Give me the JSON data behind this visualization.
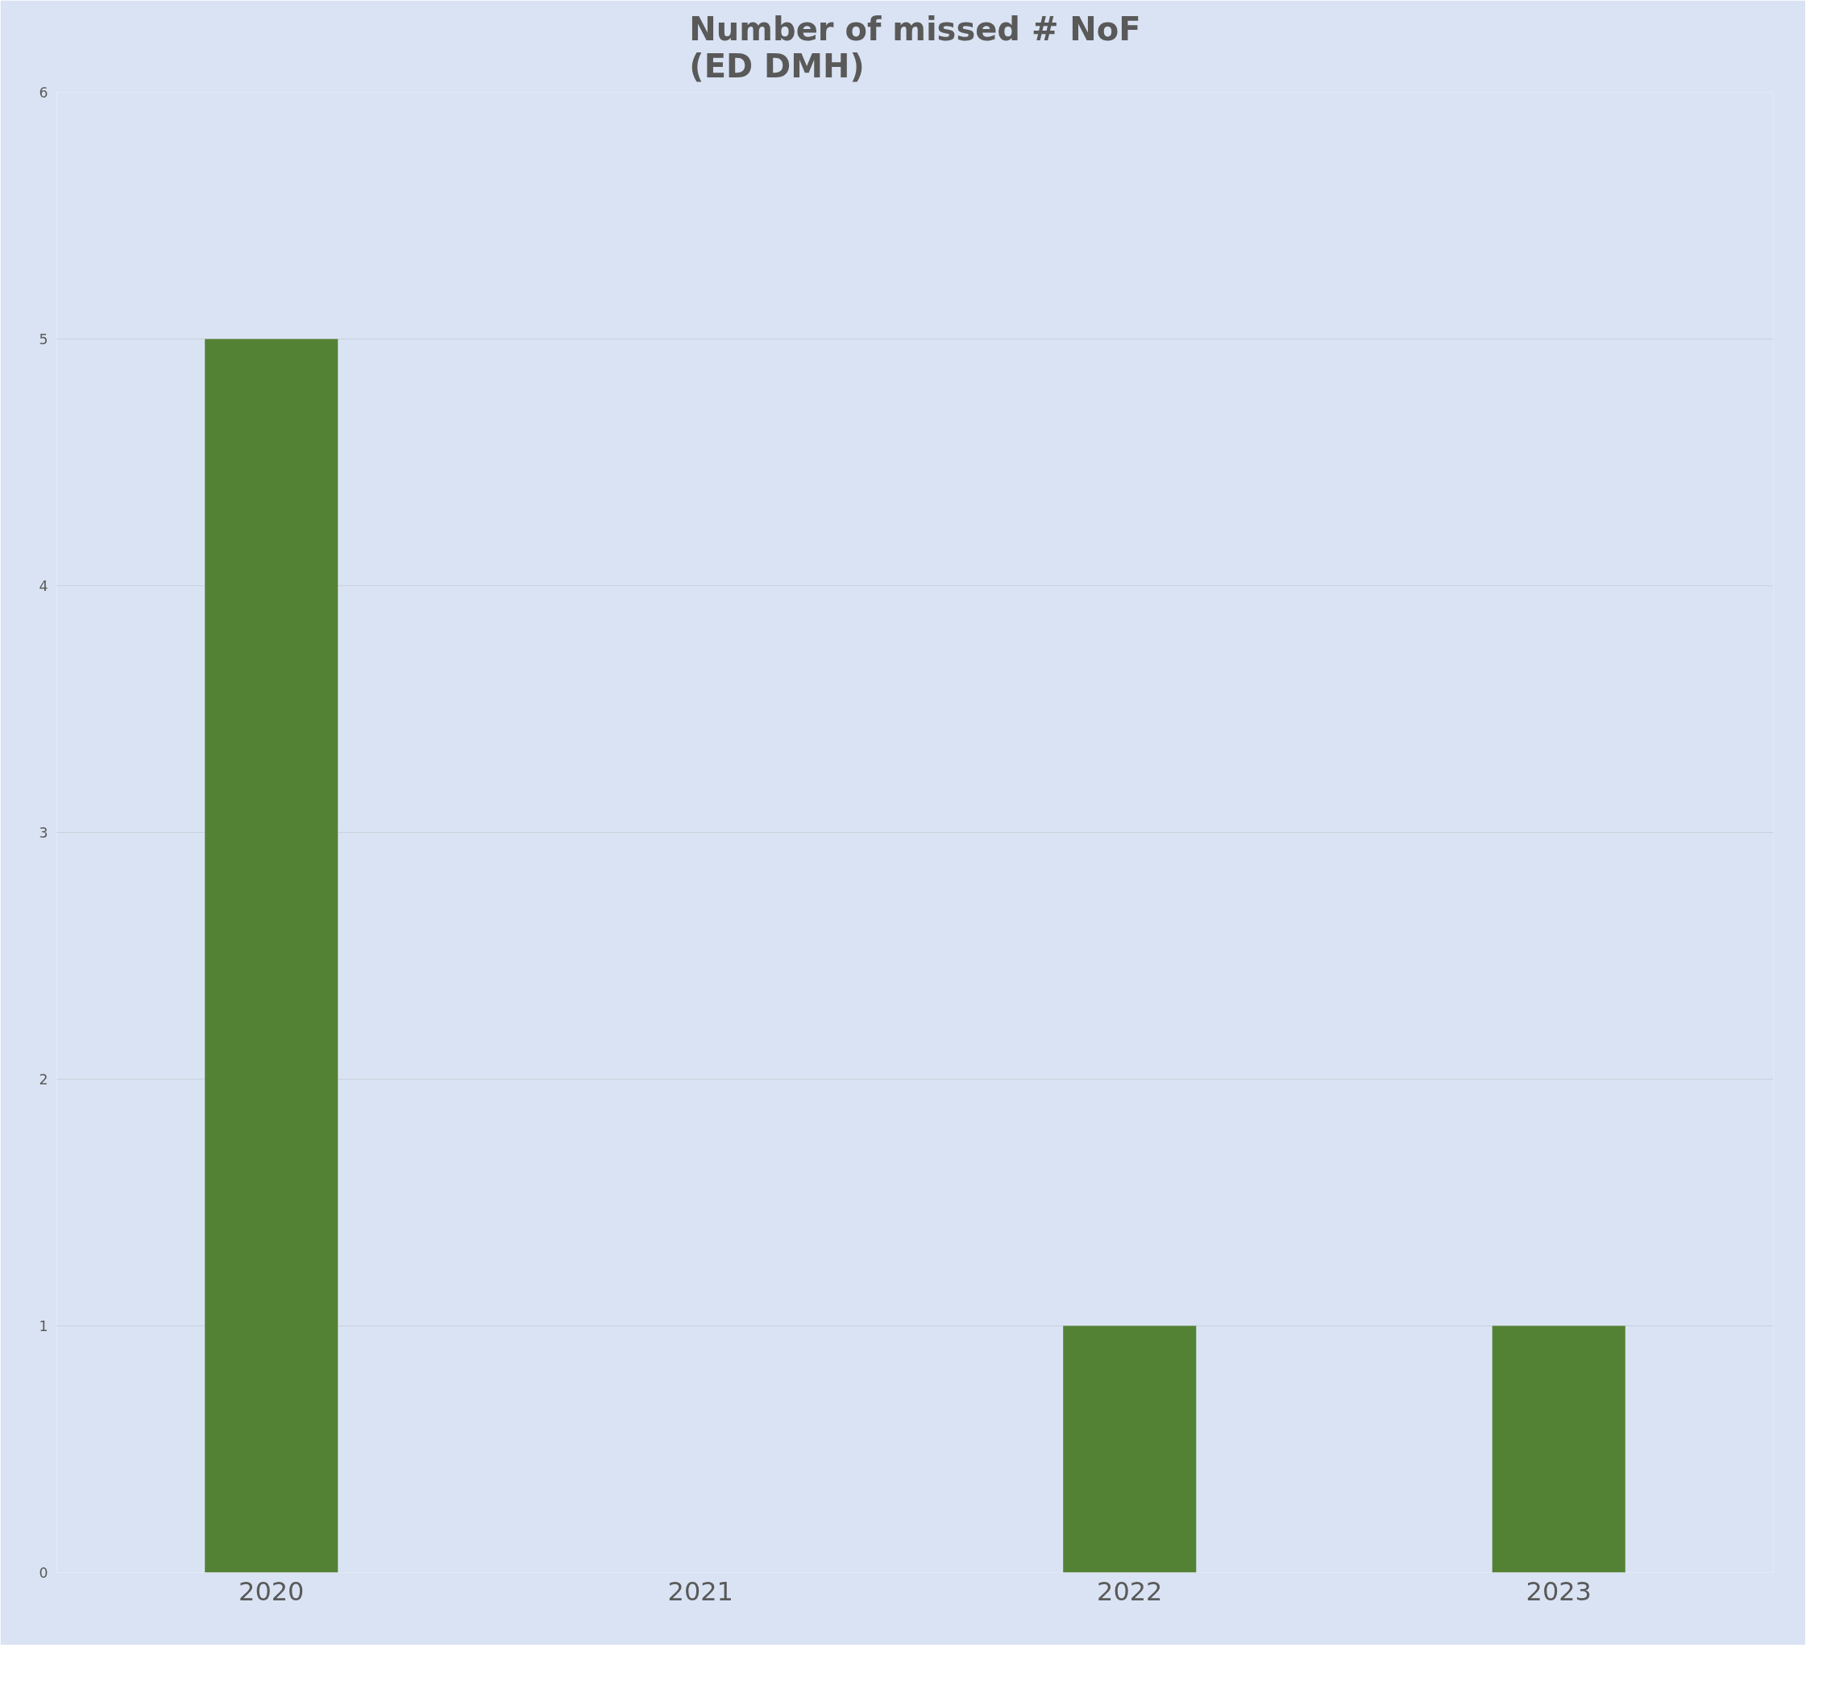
{
  "chart_data": {
    "type": "bar",
    "title": "Number of missed # NoF\n(ED DMH)",
    "categories": [
      "2020",
      "2021",
      "2022",
      "2023"
    ],
    "values": [
      5,
      0,
      1,
      1
    ],
    "color": "#548235",
    "ylim": [
      0,
      6
    ],
    "yticks": [
      0,
      1,
      2,
      3,
      4,
      5,
      6
    ],
    "grid": "y"
  }
}
